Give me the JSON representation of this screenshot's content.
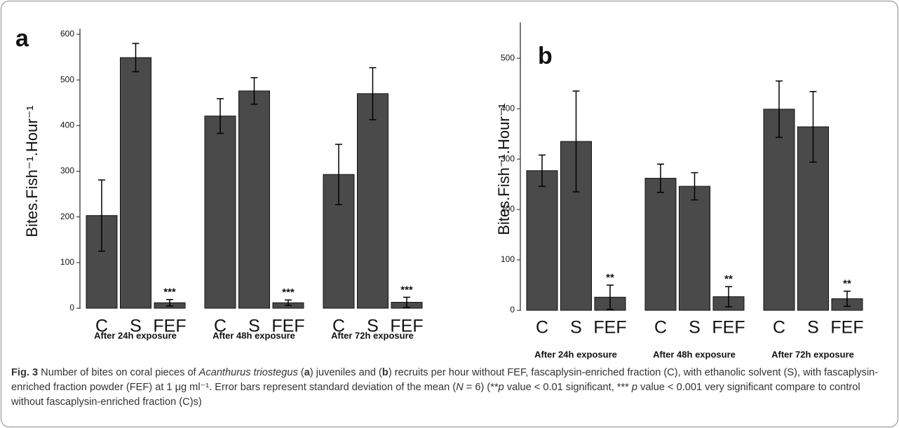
{
  "chart_data": [
    {
      "type": "bar",
      "panel": "a",
      "ylabel": "Bites.Fish⁻¹.Hour⁻¹",
      "color": "#4a4a4a",
      "ylim": [
        0,
        600
      ],
      "yticks": [
        0,
        100,
        200,
        300,
        400,
        500,
        600
      ],
      "groups": [
        {
          "name": "After 24h exposure",
          "categories": [
            "C",
            "S",
            "FEF"
          ],
          "values": [
            203,
            549,
            12
          ],
          "errors": [
            78,
            31,
            7
          ],
          "annotations": [
            null,
            null,
            "***"
          ]
        },
        {
          "name": "After 48h exposure",
          "categories": [
            "C",
            "S",
            "FEF"
          ],
          "values": [
            421,
            476,
            12
          ],
          "errors": [
            38,
            29,
            6
          ],
          "annotations": [
            null,
            null,
            "***"
          ]
        },
        {
          "name": "After 72h exposure",
          "categories": [
            "C",
            "S",
            "FEF"
          ],
          "values": [
            293,
            470,
            13
          ],
          "errors": [
            66,
            57,
            11
          ],
          "annotations": [
            null,
            null,
            "***"
          ]
        }
      ]
    },
    {
      "type": "bar",
      "panel": "b",
      "ylabel": "Bites.Fish⁻¹.Hour⁻¹",
      "color": "#4a4a4a",
      "ylim": [
        0,
        560
      ],
      "yticks": [
        0,
        100,
        200,
        300,
        400,
        500
      ],
      "groups": [
        {
          "name": "After 24h exposure",
          "categories": [
            "C",
            "S",
            "FEF"
          ],
          "values": [
            277,
            335,
            26
          ],
          "errors": [
            31,
            100,
            24
          ],
          "annotations": [
            null,
            null,
            "**"
          ]
        },
        {
          "name": "After 48h exposure",
          "categories": [
            "C",
            "S",
            "FEF"
          ],
          "values": [
            262,
            246,
            27
          ],
          "errors": [
            28,
            27,
            20
          ],
          "annotations": [
            null,
            null,
            "**"
          ]
        },
        {
          "name": "After 72h exposure",
          "categories": [
            "C",
            "S",
            "FEF"
          ],
          "values": [
            399,
            364,
            23
          ],
          "errors": [
            56,
            70,
            15
          ],
          "annotations": [
            null,
            null,
            "**"
          ]
        }
      ]
    }
  ],
  "caption": [
    {
      "text": "Fig. 3",
      "style": "bold"
    },
    {
      "text": " Number of bites on coral pieces of ",
      "style": "plain"
    },
    {
      "text": "Acanthurus triostegus",
      "style": "italic"
    },
    {
      "text": " (",
      "style": "plain"
    },
    {
      "text": "a",
      "style": "bold"
    },
    {
      "text": ") juveniles and (",
      "style": "plain"
    },
    {
      "text": "b",
      "style": "bold"
    },
    {
      "text": ") recruits per hour without FEF, fascaplysin-enriched fraction (C), with ethanolic solvent (S), with fascaplysin-enriched fraction powder (FEF) at 1 μg ml⁻¹. Error bars represent standard deviation of the mean (",
      "style": "plain"
    },
    {
      "text": "N",
      "style": "italic"
    },
    {
      "text": " = 6) (**",
      "style": "plain"
    },
    {
      "text": "p",
      "style": "italic"
    },
    {
      "text": " value < 0.01 significant, *** ",
      "style": "plain"
    },
    {
      "text": "p",
      "style": "italic"
    },
    {
      "text": " value < 0.001 very significant compare to control without fascaplysin-enriched fraction (C)s)",
      "style": "plain"
    }
  ]
}
